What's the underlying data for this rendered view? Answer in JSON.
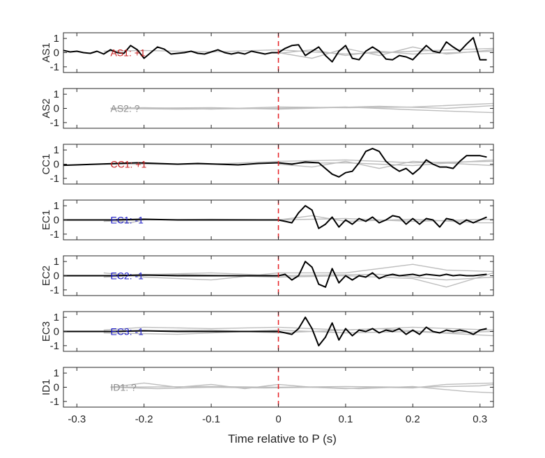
{
  "chart_data": {
    "type": "line",
    "xlabel": "Time relative to P (s)",
    "xlim": [
      -0.32,
      0.32
    ],
    "xticks": [
      -0.3,
      -0.2,
      -0.1,
      0,
      0.1,
      0.2,
      0.3
    ],
    "xtick_labels": [
      "-0.3",
      "-0.2",
      "-0.1",
      "0",
      "0.1",
      "0.2",
      "0.3"
    ],
    "ylim": [
      -1.4,
      1.4
    ],
    "yticks": [
      1,
      0,
      -1
    ],
    "ytick_labels": [
      "1",
      "0",
      "-1"
    ],
    "p_marker_x": 0,
    "colors": {
      "axes": "#262626",
      "main_trace": "#000000",
      "background_traces": "#bdbdbd",
      "p_marker": "#e8262b",
      "positive": "#c81e1e",
      "negative": "#1c1cc8",
      "unknown": "#8c8c8c"
    },
    "panels": [
      {
        "ylabel": "AS1",
        "annotation": "AS1: +1",
        "polarity": "positive",
        "main_x": [
          -0.33,
          -0.32,
          -0.31,
          -0.3,
          -0.29,
          -0.28,
          -0.27,
          -0.26,
          -0.25,
          -0.24,
          -0.23,
          -0.22,
          -0.21,
          -0.2,
          -0.19,
          -0.18,
          -0.17,
          -0.16,
          -0.15,
          -0.14,
          -0.13,
          -0.12,
          -0.11,
          -0.1,
          -0.09,
          -0.08,
          -0.07,
          -0.06,
          -0.05,
          -0.04,
          -0.03,
          -0.02,
          -0.01,
          0,
          0.01,
          0.02,
          0.03,
          0.04,
          0.05,
          0.06,
          0.07,
          0.08,
          0.09,
          0.1,
          0.11,
          0.12,
          0.13,
          0.14,
          0.15,
          0.16,
          0.17,
          0.18,
          0.19,
          0.2,
          0.21,
          0.22,
          0.23,
          0.24,
          0.25,
          0.26,
          0.27,
          0.28,
          0.29,
          0.3,
          0.31
        ],
        "main_y": [
          0.1,
          0.15,
          0.05,
          0.1,
          0.0,
          -0.05,
          0.1,
          -0.1,
          0.2,
          0.0,
          -0.05,
          0.5,
          0.2,
          -0.4,
          0.0,
          0.4,
          0.25,
          -0.1,
          -0.05,
          0.0,
          0.1,
          -0.05,
          -0.1,
          0.05,
          0.2,
          0.0,
          -0.1,
          0.0,
          -0.1,
          0.1,
          0.0,
          -0.1,
          0.0,
          0.0,
          0.3,
          0.5,
          0.55,
          -0.2,
          0.1,
          0.4,
          -0.2,
          -0.65,
          0.1,
          0.5,
          -0.4,
          -0.5,
          0.1,
          0.4,
          0.1,
          -0.45,
          -0.5,
          -0.2,
          -0.3,
          -0.5,
          0.0,
          0.5,
          0.1,
          0.0,
          0.75,
          0.4,
          0.1,
          0.6,
          1.05,
          -0.5,
          -0.5
        ],
        "background": [
          {
            "x": [
              -0.26,
              -0.2,
              -0.1,
              0.0,
              0.1,
              0.2,
              0.32
            ],
            "y": [
              0.1,
              0.15,
              0.05,
              0.2,
              -0.1,
              0.1,
              0.3
            ]
          },
          {
            "x": [
              0.0,
              0.05,
              0.1,
              0.15,
              0.2,
              0.25,
              0.32
            ],
            "y": [
              0.0,
              -0.4,
              0.3,
              -0.2,
              0.4,
              -0.1,
              0.2
            ]
          },
          {
            "x": [
              0.0,
              0.05,
              0.1,
              0.15,
              0.2,
              0.32
            ],
            "y": [
              -0.05,
              0.2,
              -0.2,
              0.1,
              -0.1,
              0.1
            ]
          }
        ]
      },
      {
        "ylabel": "AS2",
        "annotation": "AS2: ?",
        "polarity": "unknown",
        "main_x": [],
        "main_y": [],
        "background": [
          {
            "x": [
              -0.25,
              -0.2,
              -0.1,
              0.0,
              0.1,
              0.2,
              0.32
            ],
            "y": [
              0.0,
              0.05,
              -0.05,
              0.1,
              0.05,
              0.1,
              0.35
            ]
          },
          {
            "x": [
              -0.25,
              -0.15,
              0.0,
              0.1,
              0.2,
              0.32
            ],
            "y": [
              0.0,
              -0.05,
              0.0,
              0.1,
              -0.1,
              -0.3
            ]
          },
          {
            "x": [
              -0.25,
              -0.1,
              0.0,
              0.15,
              0.25,
              0.32
            ],
            "y": [
              0.0,
              0.05,
              -0.05,
              0.15,
              0.0,
              0.2
            ]
          }
        ]
      },
      {
        "ylabel": "CC1",
        "annotation": "CC1: +1",
        "polarity": "positive",
        "main_x": [
          -0.33,
          -0.3,
          -0.27,
          -0.24,
          -0.21,
          -0.18,
          -0.15,
          -0.12,
          -0.09,
          -0.06,
          -0.03,
          0.0,
          0.02,
          0.04,
          0.06,
          0.08,
          0.09,
          0.1,
          0.11,
          0.12,
          0.13,
          0.14,
          0.15,
          0.16,
          0.17,
          0.18,
          0.19,
          0.2,
          0.21,
          0.22,
          0.23,
          0.24,
          0.25,
          0.26,
          0.27,
          0.28,
          0.29,
          0.3,
          0.31
        ],
        "main_y": [
          -0.1,
          -0.05,
          0.0,
          0.05,
          0.1,
          0.05,
          0.0,
          0.05,
          0.0,
          -0.05,
          0.05,
          0.1,
          0.0,
          0.15,
          0.1,
          -0.7,
          -0.9,
          -0.6,
          -0.5,
          0.1,
          0.9,
          1.1,
          0.9,
          0.2,
          -0.2,
          -0.5,
          -0.3,
          -0.7,
          -0.3,
          0.3,
          0.0,
          -0.2,
          -0.2,
          -0.3,
          0.2,
          0.6,
          0.6,
          0.6,
          0.5
        ],
        "background": [
          {
            "x": [
              -0.26,
              -0.1,
              0.0,
              0.1,
              0.2,
              0.32
            ],
            "y": [
              0.0,
              0.0,
              0.2,
              0.3,
              0.1,
              0.2
            ]
          },
          {
            "x": [
              0.0,
              0.05,
              0.1,
              0.15,
              0.2,
              0.32
            ],
            "y": [
              0.0,
              -0.2,
              0.2,
              -0.3,
              0.2,
              -0.1
            ]
          },
          {
            "x": [
              0.0,
              0.1,
              0.2,
              0.32
            ],
            "y": [
              0.05,
              0.1,
              -0.1,
              0.3
            ]
          }
        ]
      },
      {
        "ylabel": "EC1",
        "annotation": "EC1: -1",
        "polarity": "negative",
        "main_x": [
          -0.33,
          -0.3,
          -0.25,
          -0.2,
          -0.15,
          -0.1,
          -0.05,
          0.0,
          0.01,
          0.02,
          0.03,
          0.04,
          0.05,
          0.06,
          0.07,
          0.08,
          0.09,
          0.1,
          0.11,
          0.12,
          0.13,
          0.14,
          0.15,
          0.16,
          0.17,
          0.18,
          0.19,
          0.2,
          0.21,
          0.22,
          0.23,
          0.24,
          0.25,
          0.26,
          0.27,
          0.28,
          0.29,
          0.3,
          0.31
        ],
        "main_y": [
          0.0,
          0.0,
          0.0,
          0.05,
          0.0,
          0.0,
          0.0,
          0.0,
          -0.1,
          -0.2,
          0.5,
          1.0,
          0.7,
          -0.6,
          -0.3,
          0.2,
          -0.5,
          0.0,
          -0.3,
          0.1,
          -0.1,
          0.2,
          -0.2,
          0.0,
          0.3,
          0.2,
          -0.3,
          0.1,
          -0.3,
          0.1,
          0.0,
          -0.5,
          0.1,
          0.0,
          -0.3,
          0.0,
          -0.2,
          0.0,
          0.2
        ],
        "background": [
          {
            "x": [
              -0.26,
              -0.2,
              -0.1,
              0.0,
              0.1,
              0.2,
              0.32
            ],
            "y": [
              -0.1,
              0.0,
              0.05,
              0.0,
              0.1,
              -0.1,
              0.05
            ]
          },
          {
            "x": [
              0.0,
              0.05,
              0.1,
              0.2,
              0.3,
              0.32
            ],
            "y": [
              0.0,
              0.3,
              -0.1,
              0.05,
              -0.2,
              -0.2
            ]
          },
          {
            "x": [
              -0.26,
              -0.22,
              -0.2
            ],
            "y": [
              0.0,
              -0.2,
              0.0
            ]
          }
        ]
      },
      {
        "ylabel": "EC2",
        "annotation": "EC2: -1",
        "polarity": "negative",
        "main_x": [
          -0.33,
          -0.3,
          -0.25,
          -0.2,
          -0.15,
          -0.1,
          -0.05,
          0.0,
          0.01,
          0.02,
          0.03,
          0.04,
          0.05,
          0.06,
          0.07,
          0.08,
          0.09,
          0.1,
          0.11,
          0.12,
          0.13,
          0.14,
          0.15,
          0.16,
          0.17,
          0.18,
          0.19,
          0.2,
          0.21,
          0.22,
          0.23,
          0.24,
          0.25,
          0.26,
          0.27,
          0.28,
          0.29,
          0.3,
          0.31
        ],
        "main_y": [
          0.0,
          0.0,
          0.0,
          0.05,
          0.0,
          0.0,
          0.0,
          0.0,
          0.1,
          -0.3,
          0.0,
          1.0,
          0.6,
          -0.6,
          -0.8,
          0.5,
          -0.5,
          0.0,
          -0.3,
          0.0,
          -0.1,
          0.2,
          -0.2,
          0.0,
          0.1,
          0.0,
          0.05,
          0.1,
          0.0,
          0.1,
          0.05,
          0.0,
          0.1,
          0.0,
          0.05,
          0.0,
          0.0,
          0.05,
          0.1
        ],
        "background": [
          {
            "x": [
              -0.26,
              -0.2,
              -0.1,
              0.0,
              0.1,
              0.2,
              0.25,
              0.32
            ],
            "y": [
              0.2,
              -0.1,
              -0.3,
              0.2,
              0.2,
              0.8,
              0.4,
              0.3
            ]
          },
          {
            "x": [
              -0.26,
              -0.15,
              0.0,
              0.1,
              0.2,
              0.25,
              0.32
            ],
            "y": [
              -0.1,
              0.1,
              -0.1,
              0.0,
              -0.2,
              -0.8,
              0.2
            ]
          },
          {
            "x": [
              -0.26,
              -0.1,
              0.0,
              0.15,
              0.25,
              0.32
            ],
            "y": [
              0.0,
              0.2,
              0.0,
              0.1,
              -0.3,
              -0.1
            ]
          }
        ]
      },
      {
        "ylabel": "EC3",
        "annotation": "EC3: -1",
        "polarity": "negative",
        "main_x": [
          -0.33,
          -0.3,
          -0.25,
          -0.2,
          -0.15,
          -0.1,
          -0.05,
          0.0,
          0.01,
          0.02,
          0.03,
          0.04,
          0.05,
          0.06,
          0.07,
          0.08,
          0.09,
          0.1,
          0.11,
          0.12,
          0.13,
          0.14,
          0.15,
          0.16,
          0.17,
          0.18,
          0.19,
          0.2,
          0.21,
          0.22,
          0.23,
          0.24,
          0.25,
          0.26,
          0.27,
          0.28,
          0.29,
          0.3,
          0.31
        ],
        "main_y": [
          0.0,
          0.0,
          0.0,
          0.05,
          0.0,
          0.0,
          0.0,
          0.0,
          -0.1,
          -0.2,
          0.2,
          1.0,
          0.2,
          -1.0,
          -0.4,
          0.6,
          -0.6,
          0.2,
          -0.3,
          0.1,
          0.0,
          0.2,
          -0.1,
          0.1,
          0.0,
          0.2,
          -0.2,
          0.1,
          -0.2,
          0.3,
          0.0,
          -0.1,
          0.1,
          0.0,
          0.1,
          0.0,
          -0.2,
          0.1,
          0.2
        ],
        "background": [
          {
            "x": [
              -0.26,
              -0.2,
              -0.1,
              0.0,
              0.1,
              0.2,
              0.32
            ],
            "y": [
              0.1,
              0.3,
              0.2,
              0.3,
              0.1,
              0.3,
              0.1
            ]
          },
          {
            "x": [
              -0.26,
              -0.15,
              0.0,
              0.1,
              0.2,
              0.32
            ],
            "y": [
              -0.1,
              -0.2,
              0.1,
              -0.1,
              0.0,
              -0.3
            ]
          },
          {
            "x": [
              -0.26,
              -0.1,
              0.0,
              0.15,
              0.25,
              0.32
            ],
            "y": [
              0.0,
              0.1,
              -0.1,
              0.2,
              -0.1,
              0.0
            ]
          }
        ]
      },
      {
        "ylabel": "ID1",
        "annotation": "ID1: ?",
        "polarity": "unknown",
        "main_x": [],
        "main_y": [],
        "background": [
          {
            "x": [
              -0.25,
              -0.2,
              -0.15,
              -0.1,
              -0.05,
              0.0,
              0.05,
              0.1,
              0.15,
              0.2,
              0.25,
              0.32
            ],
            "y": [
              0.0,
              0.3,
              0.0,
              0.2,
              -0.1,
              0.2,
              0.0,
              -0.1,
              0.0,
              -0.05,
              0.2,
              0.3
            ]
          },
          {
            "x": [
              -0.25,
              -0.18,
              -0.1,
              -0.02,
              0.05,
              0.12,
              0.2,
              0.28,
              0.32
            ],
            "y": [
              0.0,
              -0.1,
              0.0,
              -0.05,
              0.0,
              -0.1,
              0.05,
              -0.3,
              -0.4
            ]
          },
          {
            "x": [
              -0.25,
              -0.1,
              0.0,
              0.1,
              0.2,
              0.3,
              0.32
            ],
            "y": [
              0.0,
              0.05,
              0.0,
              0.05,
              0.0,
              0.1,
              0.2
            ]
          }
        ]
      }
    ]
  }
}
